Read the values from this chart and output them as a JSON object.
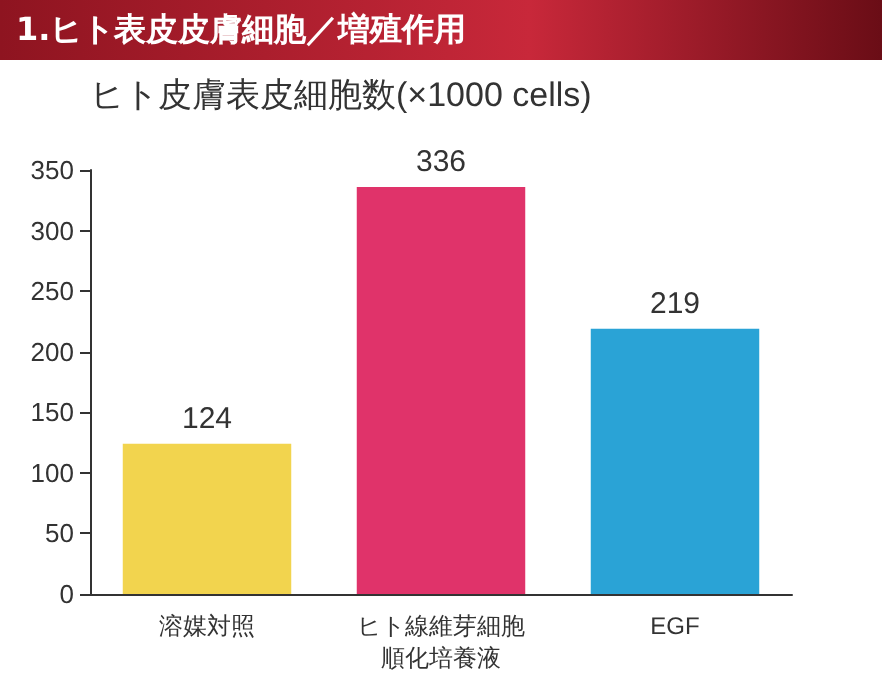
{
  "chart_data": {
    "type": "bar",
    "title": "1.ヒト表皮皮膚細胞／増殖作用",
    "subtitle": "ヒト皮膚表皮細胞数(×1000 cells)",
    "categories": [
      "溶媒対照",
      "ヒト線維芽細胞順化培養液",
      "EGF"
    ],
    "values": [
      124,
      336,
      219
    ],
    "colors": [
      "#f2d44e",
      "#e0336a",
      "#2aa3d6"
    ],
    "ylim": [
      0,
      350
    ],
    "yticks": [
      0,
      50,
      100,
      150,
      200,
      250,
      300,
      350
    ],
    "data_labels": true,
    "grid": false
  }
}
